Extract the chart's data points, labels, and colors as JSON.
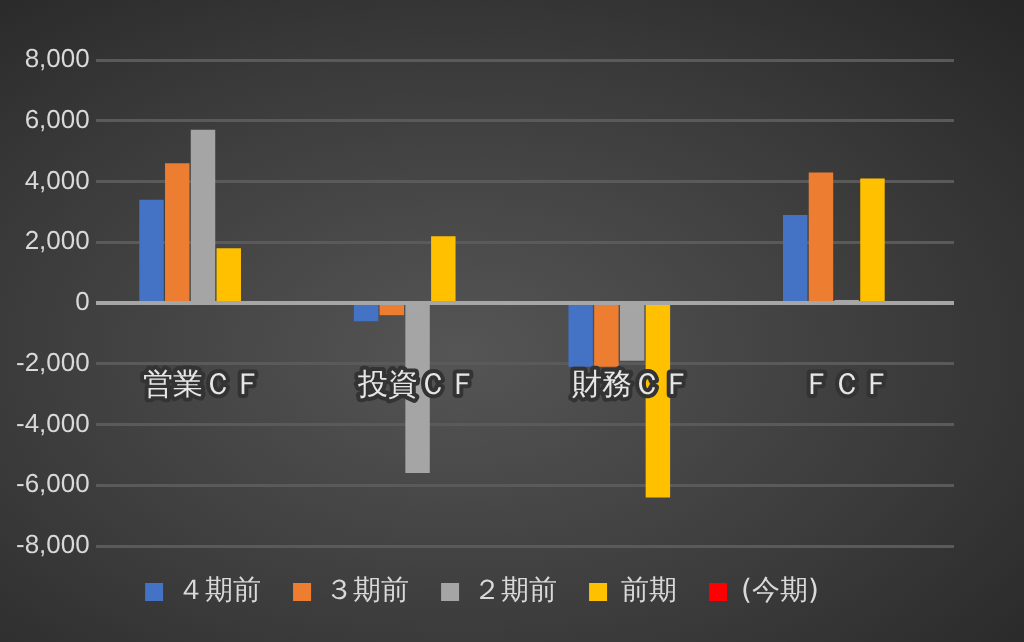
{
  "chart_data": {
    "type": "bar",
    "categories": [
      "営業ＣＦ",
      "投資ＣＦ",
      "財務ＣＦ",
      "ＦＣＦ"
    ],
    "series": [
      {
        "name": "４期前",
        "color": "#4472c4",
        "values": [
          3400,
          -600,
          -2100,
          2900
        ]
      },
      {
        "name": "３期前",
        "color": "#ed7d31",
        "values": [
          4600,
          -400,
          -2100,
          4300
        ]
      },
      {
        "name": "２期前",
        "color": "#a5a5a5",
        "values": [
          5700,
          -5600,
          -1900,
          100
        ]
      },
      {
        "name": "前期",
        "color": "#ffc000",
        "values": [
          1800,
          2200,
          -6400,
          4100
        ]
      },
      {
        "name": "(今期)",
        "color": "#ff0000",
        "values": [
          null,
          null,
          null,
          null
        ]
      }
    ],
    "ylim": [
      -8000,
      8000
    ],
    "yticks": [
      {
        "value": -8000,
        "label": "-8,000"
      },
      {
        "value": -6000,
        "label": "-6,000"
      },
      {
        "value": -4000,
        "label": "-4,000"
      },
      {
        "value": -2000,
        "label": "-2,000"
      },
      0,
      {
        "value": 2000,
        "label": "2,000"
      },
      {
        "value": 4000,
        "label": "4,000"
      },
      {
        "value": 6000,
        "label": "6,000"
      },
      {
        "value": 8000,
        "label": "8,000"
      }
    ],
    "grid": "y",
    "legend": "bottom"
  }
}
